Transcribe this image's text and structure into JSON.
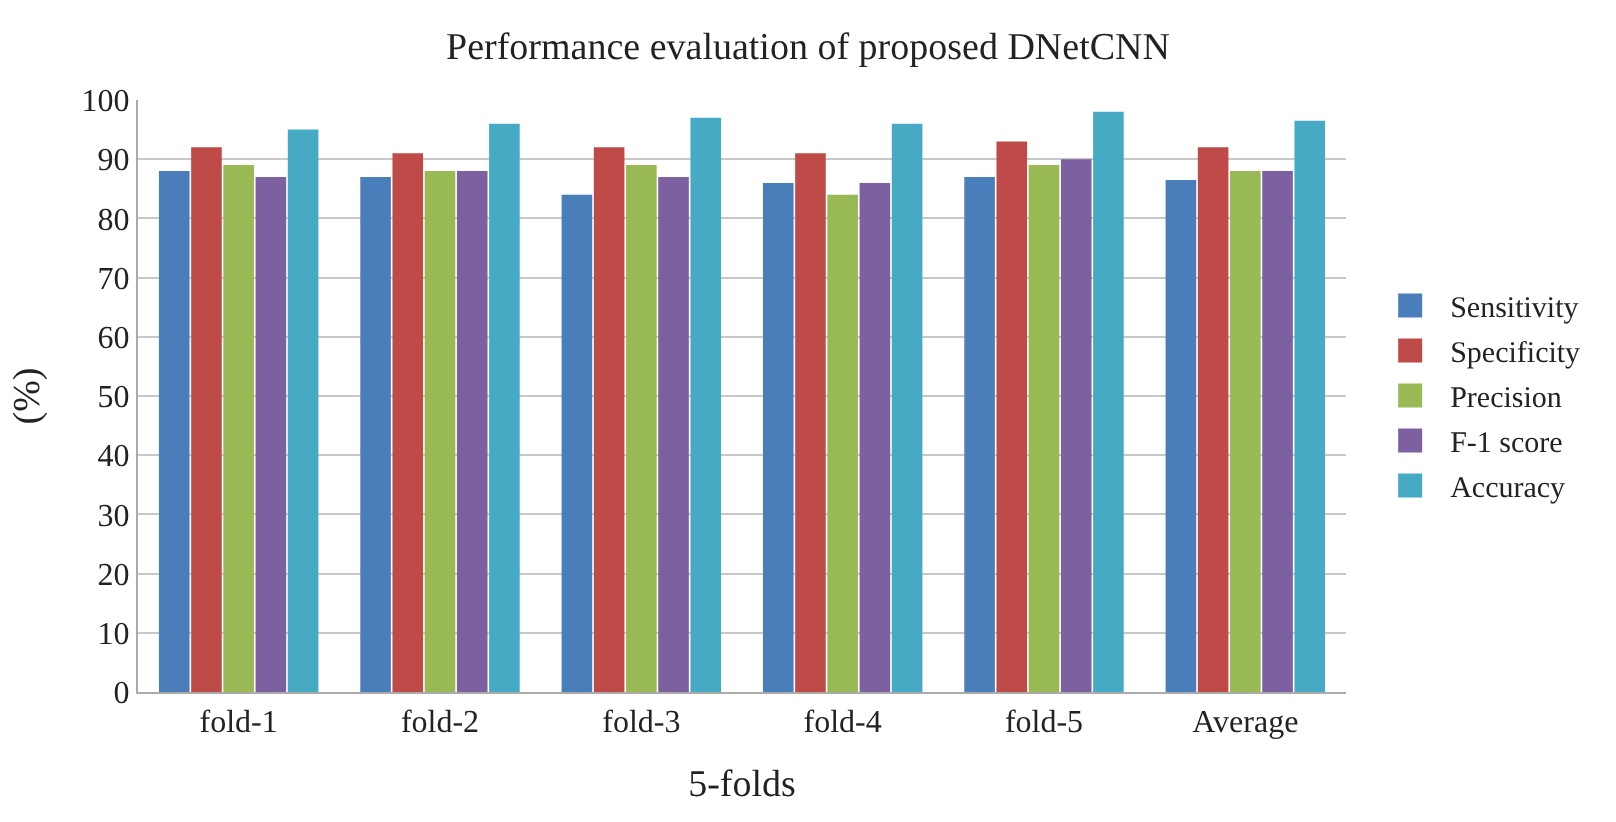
{
  "chart_data": {
    "type": "bar",
    "title": "Performance evaluation of proposed DNetCNN",
    "xlabel": "5-folds",
    "ylabel": "(%)",
    "categories": [
      "fold-1",
      "fold-2",
      "fold-3",
      "fold-4",
      "fold-5",
      "Average"
    ],
    "series": [
      {
        "name": "Sensitivity",
        "color": "#4a7ebb",
        "values": [
          88,
          87,
          84,
          86,
          87,
          86.5
        ]
      },
      {
        "name": "Specificity",
        "color": "#be4b48",
        "values": [
          92,
          91,
          92,
          91,
          93,
          92
        ]
      },
      {
        "name": "Precision",
        "color": "#98b954",
        "values": [
          89,
          88,
          89,
          84,
          89,
          88
        ]
      },
      {
        "name": "F-1 score",
        "color": "#7d60a0",
        "values": [
          87,
          88,
          87,
          86,
          90,
          88
        ]
      },
      {
        "name": "Accuracy",
        "color": "#46aac5",
        "values": [
          95,
          96,
          97,
          96,
          98,
          96.5
        ]
      }
    ],
    "ylim": [
      0,
      100
    ],
    "yticks": [
      0,
      10,
      20,
      30,
      40,
      50,
      60,
      70,
      80,
      90,
      100
    ],
    "grid": "y",
    "legend": "right"
  }
}
